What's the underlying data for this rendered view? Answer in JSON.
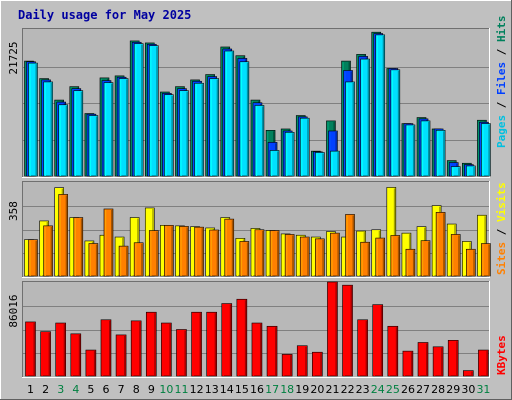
{
  "title": "Daily usage for May 2025",
  "colors": {
    "background": "#c0c0c0",
    "plot_bg": "#b8b8b8",
    "title": "#0000a0",
    "hits": "#00805c",
    "files": "#0040ff",
    "pages": "#00e0ff",
    "visits": "#ffff00",
    "sites": "#ff8000",
    "kbytes": "#ff0000",
    "weekend_label": "#008040",
    "day_label": "#000000"
  },
  "chart_data": [
    {
      "type": "bar",
      "title": "Pages / Files / Hits",
      "ymax_label": "21725",
      "ylim": [
        0,
        21725
      ],
      "grid": true,
      "legend_placement": "right",
      "legend": [
        {
          "name": "Pages",
          "color": "#00c0e0"
        },
        {
          "name": "Files",
          "color": "#0040ff"
        },
        {
          "name": "Hits",
          "color": "#00805c"
        }
      ],
      "categories": [
        "1",
        "2",
        "3",
        "4",
        "5",
        "6",
        "7",
        "8",
        "9",
        "10",
        "11",
        "12",
        "13",
        "14",
        "15",
        "16",
        "17",
        "18",
        "19",
        "20",
        "21",
        "22",
        "23",
        "24",
        "25",
        "26",
        "27",
        "28",
        "29",
        "30",
        "31"
      ],
      "series": [
        {
          "name": "Hits",
          "values": [
            17100,
            14500,
            11300,
            13300,
            9300,
            14600,
            14900,
            20100,
            19800,
            12500,
            13300,
            14300,
            15100,
            19200,
            17900,
            11300,
            6800,
            7000,
            9000,
            3700,
            8200,
            17100,
            18100,
            21400,
            16000,
            7800,
            8700,
            7000,
            2300,
            1900,
            8300
          ]
        },
        {
          "name": "Files",
          "values": [
            17000,
            14300,
            11000,
            13000,
            9200,
            14200,
            14700,
            19900,
            19600,
            12300,
            13000,
            14100,
            14800,
            18900,
            17500,
            10900,
            5000,
            6700,
            8800,
            3600,
            6700,
            15700,
            17800,
            21200,
            16000,
            7800,
            8500,
            7000,
            2000,
            1700,
            8000
          ]
        },
        {
          "name": "Pages",
          "values": [
            16800,
            14000,
            10600,
            12700,
            9000,
            13900,
            14500,
            19700,
            19400,
            12100,
            12700,
            13800,
            14500,
            18600,
            17000,
            10500,
            3800,
            6500,
            8600,
            3500,
            3700,
            14000,
            17400,
            21000,
            15800,
            7600,
            8200,
            6800,
            1400,
            1500,
            7800
          ]
        }
      ]
    },
    {
      "type": "bar",
      "title": "Sites / Visits",
      "ymax_label": "358",
      "ylim": [
        0,
        358
      ],
      "grid": true,
      "legend_placement": "right",
      "legend": [
        {
          "name": "Sites",
          "color": "#ff8000"
        },
        {
          "name": "Visits",
          "color": "#ffff00"
        }
      ],
      "categories": [
        "1",
        "2",
        "3",
        "4",
        "5",
        "6",
        "7",
        "8",
        "9",
        "10",
        "11",
        "12",
        "13",
        "14",
        "15",
        "16",
        "17",
        "18",
        "19",
        "20",
        "21",
        "22",
        "23",
        "24",
        "25",
        "26",
        "27",
        "28",
        "29",
        "30",
        "31"
      ],
      "series": [
        {
          "name": "Visits",
          "values": [
            140,
            212,
            340,
            225,
            135,
            157,
            150,
            225,
            262,
            195,
            193,
            190,
            185,
            225,
            145,
            183,
            175,
            162,
            157,
            150,
            171,
            150,
            173,
            178,
            341,
            165,
            190,
            271,
            200,
            133,
            234
          ]
        },
        {
          "name": "Sites",
          "values": [
            140,
            193,
            314,
            225,
            125,
            258,
            115,
            128,
            175,
            195,
            191,
            188,
            177,
            219,
            133,
            178,
            175,
            160,
            150,
            143,
            165,
            237,
            130,
            146,
            156,
            103,
            136,
            245,
            160,
            103,
            125
          ]
        }
      ]
    },
    {
      "type": "bar",
      "title": "KBytes",
      "ymax_label": "86016",
      "ylim": [
        0,
        86016
      ],
      "grid": true,
      "legend_placement": "right",
      "legend": [
        {
          "name": "KBytes",
          "color": "#ff0000"
        }
      ],
      "categories": [
        "1",
        "2",
        "3",
        "4",
        "5",
        "6",
        "7",
        "8",
        "9",
        "10",
        "11",
        "12",
        "13",
        "14",
        "15",
        "16",
        "17",
        "18",
        "19",
        "20",
        "21",
        "22",
        "23",
        "24",
        "25",
        "26",
        "27",
        "28",
        "29",
        "30",
        "31"
      ],
      "series": [
        {
          "name": "KBytes",
          "values": [
            50000,
            41000,
            49000,
            39000,
            24000,
            52000,
            38000,
            51000,
            59000,
            49000,
            43000,
            59000,
            59000,
            67000,
            71000,
            49000,
            46000,
            20000,
            28000,
            22000,
            90000,
            84000,
            52000,
            66000,
            46000,
            23000,
            31000,
            27000,
            33000,
            5000,
            24000
          ]
        }
      ]
    }
  ],
  "days": [
    "1",
    "2",
    "3",
    "4",
    "5",
    "6",
    "7",
    "8",
    "9",
    "10",
    "11",
    "12",
    "13",
    "14",
    "15",
    "16",
    "17",
    "18",
    "19",
    "20",
    "21",
    "22",
    "23",
    "24",
    "25",
    "26",
    "27",
    "28",
    "29",
    "30",
    "31"
  ],
  "weekend_days": [
    3,
    4,
    10,
    11,
    17,
    18,
    24,
    25,
    31
  ]
}
